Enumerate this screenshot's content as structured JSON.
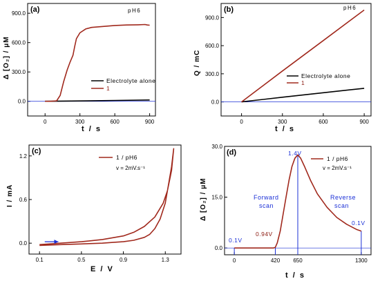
{
  "panels": {
    "a": {
      "letter": "(a)",
      "tag": "pH6",
      "ylabel": "Δ [O₂] / μM",
      "xlabel": "t / s",
      "legend": [
        "Electrolyte alone",
        "1"
      ]
    },
    "b": {
      "letter": "(b)",
      "tag": "pH6",
      "ylabel": "Q / mC",
      "xlabel": "t / s",
      "legend": [
        "Electrolyte alone",
        "1"
      ]
    },
    "c": {
      "letter": "(c)",
      "legend": "1 / pH6",
      "rate": "v = 2mV.s⁻¹",
      "ylabel": "I / mA",
      "xlabel": "E / V"
    },
    "d": {
      "letter": "(d)",
      "legend": "1 / pH6",
      "rate": "v = 2mV.s⁻¹",
      "ylabel": "Δ [O₂] / μM",
      "xlabel": "t / s",
      "annotations": {
        "p1": "0.1V",
        "p2": "0.94V",
        "p3": "1.4V",
        "p4": "0.1V",
        "forward": [
          "Forward",
          "scan"
        ],
        "reverse": [
          "Reverse",
          "scan"
        ]
      }
    }
  },
  "colors": {
    "series_1": "#a0281c",
    "electrolyte": "#000000",
    "annotation": "#1a2fd6",
    "axes": "#000000"
  },
  "chart_data": [
    {
      "type": "line",
      "panel": "a",
      "title": "",
      "xlabel": "t / s",
      "ylabel": "Δ [O₂] / μM",
      "xlim": [
        -150,
        950
      ],
      "ylim": [
        -150,
        1000
      ],
      "xticks": [
        0,
        300,
        600,
        900
      ],
      "yticks": [
        0,
        300,
        600,
        900
      ],
      "xtick_labels": [
        "0",
        "300",
        "600",
        "900"
      ],
      "ytick_labels": [
        "0.0",
        "300.0",
        "600.0",
        "900.0"
      ],
      "hline": 0,
      "series": [
        {
          "name": "Electrolyte alone",
          "color": "#000000",
          "x": [
            0,
            300,
            600,
            900
          ],
          "y": [
            0,
            4,
            9,
            14
          ]
        },
        {
          "name": "1",
          "color": "#a0281c",
          "x": [
            0,
            50,
            100,
            130,
            160,
            190,
            215,
            240,
            255,
            270,
            300,
            350,
            400,
            500,
            600,
            700,
            800,
            860,
            880,
            900
          ],
          "y": [
            0,
            0,
            5,
            60,
            200,
            320,
            400,
            470,
            560,
            640,
            700,
            740,
            755,
            765,
            775,
            780,
            782,
            785,
            780,
            778
          ]
        }
      ]
    },
    {
      "type": "line",
      "panel": "b",
      "title": "",
      "xlabel": "t / s",
      "ylabel": "Q / mC",
      "xlim": [
        -150,
        950
      ],
      "ylim": [
        -150,
        1050
      ],
      "xticks": [
        0,
        300,
        600,
        900
      ],
      "yticks": [
        0,
        300,
        600,
        900
      ],
      "xtick_labels": [
        "0",
        "300",
        "600",
        "900"
      ],
      "ytick_labels": [
        "0.0",
        "300.0",
        "600.0",
        "900.0"
      ],
      "hline": 0,
      "series": [
        {
          "name": "Electrolyte alone",
          "color": "#000000",
          "x": [
            0,
            300,
            600,
            900
          ],
          "y": [
            0,
            50,
            98,
            145
          ]
        },
        {
          "name": "1",
          "color": "#a0281c",
          "x": [
            0,
            300,
            600,
            900
          ],
          "y": [
            0,
            330,
            655,
            980
          ]
        }
      ]
    },
    {
      "type": "line",
      "panel": "c",
      "title": "",
      "xlabel": "E / V",
      "ylabel": "I / mA",
      "xlim": [
        0,
        1.45
      ],
      "ylim": [
        -0.15,
        1.35
      ],
      "xticks": [
        0.1,
        0.5,
        0.9,
        1.3
      ],
      "yticks": [
        0.0,
        0.6,
        1.2
      ],
      "xtick_labels": [
        "0.1",
        "0.5",
        "0.9",
        "1.3"
      ],
      "ytick_labels": [
        "0.0",
        "0.6",
        "1.2"
      ],
      "arrow": {
        "from": [
          0.15,
          0.02
        ],
        "to": [
          0.28,
          0.02
        ]
      },
      "series": [
        {
          "name": "1 / pH6",
          "color": "#a0281c",
          "x": [
            0.1,
            0.3,
            0.5,
            0.7,
            0.8,
            0.9,
            1.0,
            1.1,
            1.15,
            1.2,
            1.25,
            1.3,
            1.33,
            1.36,
            1.38,
            1.36,
            1.32,
            1.28,
            1.2,
            1.1,
            1.0,
            0.9,
            0.7,
            0.5,
            0.3,
            0.1
          ],
          "y": [
            -0.03,
            -0.02,
            -0.01,
            0.0,
            0.01,
            0.02,
            0.04,
            0.08,
            0.12,
            0.2,
            0.33,
            0.55,
            0.8,
            1.05,
            1.3,
            1.0,
            0.72,
            0.55,
            0.36,
            0.23,
            0.15,
            0.1,
            0.05,
            0.02,
            0.0,
            -0.02
          ]
        }
      ]
    },
    {
      "type": "line",
      "panel": "d",
      "title": "",
      "xlabel": "t / s",
      "ylabel": "Δ [O₂] / μM",
      "xlim": [
        -100,
        1400
      ],
      "ylim": [
        -2,
        30
      ],
      "xticks": [
        0,
        420,
        650,
        1300
      ],
      "yticks": [
        0.0,
        15.0,
        30.0
      ],
      "xtick_labels": [
        "0",
        "420",
        "650",
        "1300"
      ],
      "ytick_labels": [
        "0.0",
        "15.0",
        "30.0"
      ],
      "vlines": [
        0,
        420,
        650,
        1300
      ],
      "series": [
        {
          "name": "1 / pH6",
          "color": "#a0281c",
          "x": [
            0,
            100,
            200,
            300,
            400,
            420,
            440,
            470,
            500,
            530,
            560,
            590,
            620,
            650,
            680,
            720,
            780,
            850,
            950,
            1050,
            1150,
            1250,
            1300
          ],
          "y": [
            0,
            0,
            0,
            0,
            0,
            0.2,
            1.5,
            5,
            10,
            15,
            20,
            24,
            26.5,
            27.5,
            26.5,
            24,
            20,
            16,
            12,
            9,
            7,
            5.5,
            5
          ]
        }
      ]
    }
  ]
}
